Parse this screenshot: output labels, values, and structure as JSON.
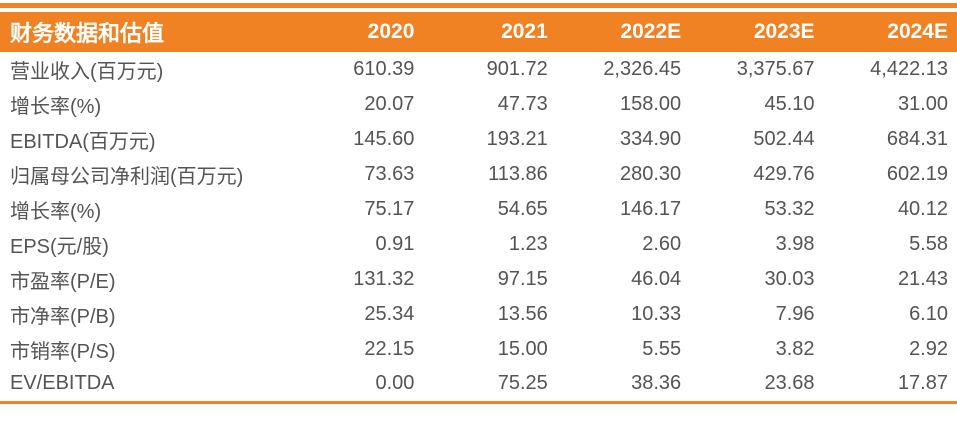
{
  "page": {
    "accent_color": "#F08223",
    "text_color": "#545454",
    "header_text_color": "#FFFFFF"
  },
  "table": {
    "title": "财务数据和估值",
    "columns": [
      "2020",
      "2021",
      "2022E",
      "2023E",
      "2024E"
    ],
    "rows": [
      {
        "label": "营业收入(百万元)",
        "values": [
          "610.39",
          "901.72",
          "2,326.45",
          "3,375.67",
          "4,422.13"
        ]
      },
      {
        "label": "增长率(%)",
        "values": [
          "20.07",
          "47.73",
          "158.00",
          "45.10",
          "31.00"
        ]
      },
      {
        "label": "EBITDA(百万元)",
        "values": [
          "145.60",
          "193.21",
          "334.90",
          "502.44",
          "684.31"
        ]
      },
      {
        "label": "归属母公司净利润(百万元)",
        "values": [
          "73.63",
          "113.86",
          "280.30",
          "429.76",
          "602.19"
        ]
      },
      {
        "label": "增长率(%)",
        "values": [
          "75.17",
          "54.65",
          "146.17",
          "53.32",
          "40.12"
        ]
      },
      {
        "label": "EPS(元/股)",
        "values": [
          "0.91",
          "1.23",
          "2.60",
          "3.98",
          "5.58"
        ]
      },
      {
        "label": "市盈率(P/E)",
        "values": [
          "131.32",
          "97.15",
          "46.04",
          "30.03",
          "21.43"
        ]
      },
      {
        "label": "市净率(P/B)",
        "values": [
          "25.34",
          "13.56",
          "10.33",
          "7.96",
          "6.10"
        ]
      },
      {
        "label": "市销率(P/S)",
        "values": [
          "22.15",
          "15.00",
          "5.55",
          "3.82",
          "2.92"
        ]
      },
      {
        "label": "EV/EBITDA",
        "values": [
          "0.00",
          "75.25",
          "38.36",
          "23.68",
          "17.87"
        ]
      }
    ]
  }
}
